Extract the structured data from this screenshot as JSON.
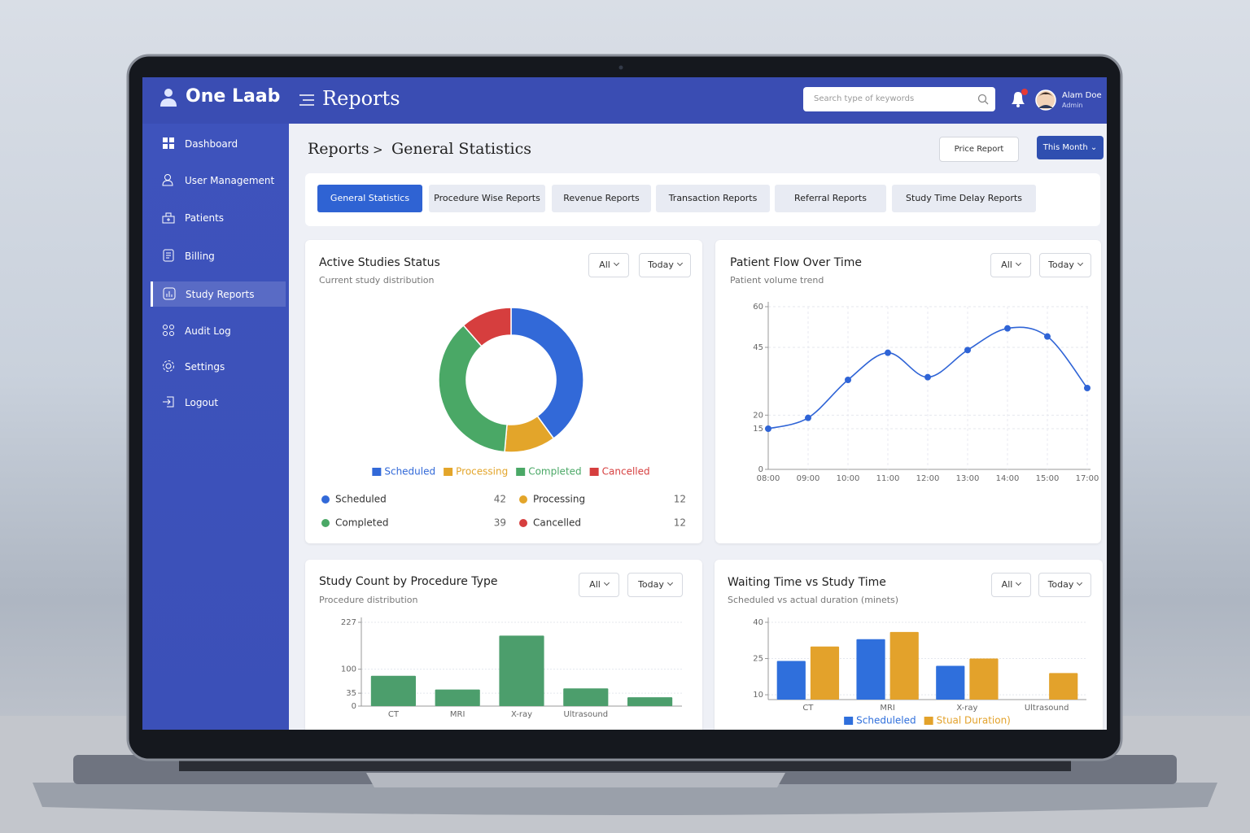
{
  "header": {
    "brand": "One Laab",
    "title": "Reports",
    "search_placeholder": "Search type of keywords",
    "user_name": "Alam Doe",
    "user_role": "Admin"
  },
  "sidebar": {
    "items": [
      "Dashboard",
      "User Management",
      "Patients",
      "Billing",
      "Study Reports",
      "Audit Log",
      "Settings",
      "Logout"
    ],
    "active": 4
  },
  "breadcrumb": [
    "Reports",
    ">",
    "General Statistics"
  ],
  "actions": [
    "Price Report",
    "This Month"
  ],
  "tabs": {
    "items": [
      "General Statistics",
      "Procedure Wise Reports",
      "Revenue Reports",
      "Transaction Reports",
      "Referral Reports",
      "Study Time Delay Reports"
    ],
    "active": 0
  },
  "chart_data": [
    {
      "type": "pie",
      "donut": true,
      "title": "Active Studies Status",
      "subtitle": "Current study distribution",
      "filters": [
        "All",
        "Today"
      ],
      "categories": [
        "Scheduled",
        "Processing",
        "Completed",
        "Cancelled"
      ],
      "values": [
        42,
        12,
        39,
        12
      ],
      "colors": [
        "#3269d8",
        "#e3a52a",
        "#4aa866",
        "#d63e3e"
      ]
    },
    {
      "type": "line",
      "title": "Patient Flow Over Time",
      "subtitle": "Patient volume trend",
      "filters": [
        "All",
        "Today"
      ],
      "categories": [
        "08:00",
        "09:00",
        "10:00",
        "11:00",
        "12:00",
        "13:00",
        "14:00",
        "15:00",
        "17:00"
      ],
      "values": [
        15,
        19,
        33,
        43,
        34,
        44,
        52,
        49,
        30
      ],
      "color": "#2f64d6",
      "ylim": [
        0,
        60
      ],
      "yticks": [
        0,
        15,
        20,
        45,
        60
      ],
      "grid": true
    },
    {
      "type": "bar",
      "title": "Study Count by Procedure Type",
      "subtitle": "Procedure distribution",
      "filters": [
        "All",
        "Today"
      ],
      "categories": [
        "CT",
        "MRI",
        "X-ray",
        "Ultrasound",
        null
      ],
      "values": [
        82,
        45,
        191,
        48,
        24
      ],
      "color": "#4c9e6c",
      "ylim": [
        0,
        227
      ],
      "yticks": [
        0,
        35,
        100,
        227
      ],
      "grid": true
    },
    {
      "type": "bar",
      "title": "Waiting Time vs Study Time",
      "subtitle": "Scheduled vs actual duration (minets)",
      "filters": [
        "All",
        "Today"
      ],
      "categories": [
        "CT",
        "MRI",
        "X-ray",
        "Ultrasound"
      ],
      "series": [
        {
          "name": "Scheduleled",
          "color": "#2f6fdc",
          "values": [
            24,
            33,
            22,
            null
          ]
        },
        {
          "name": "Stual Duration)",
          "color": "#e3a22b",
          "values": [
            30,
            36,
            25,
            19
          ]
        }
      ],
      "ylim": [
        8,
        40
      ],
      "yticks": [
        10,
        25,
        40
      ],
      "grid": true,
      "legend": "bottom"
    }
  ]
}
